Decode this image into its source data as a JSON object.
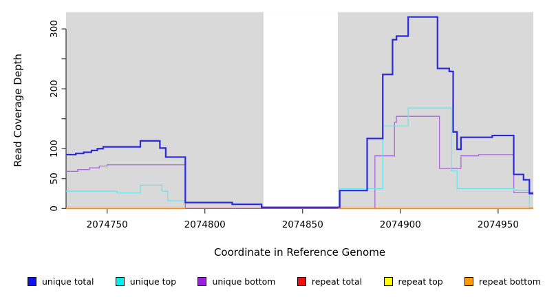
{
  "chart_data": {
    "type": "line",
    "subtype": "step-coverage",
    "title": "",
    "xlabel": "Coordinate in Reference Genome",
    "ylabel": "Read Coverage Depth",
    "xlim": [
      2074729,
      2074968
    ],
    "ylim": [
      0,
      328
    ],
    "grid": false,
    "panel_color": "#d9d9d9",
    "gap_band": {
      "x0": 2074830,
      "x1": 2074868,
      "color": "#ffffff"
    },
    "x_ticks": [
      {
        "v": 2074750,
        "label": "2074750"
      },
      {
        "v": 2074800,
        "label": "2074800"
      },
      {
        "v": 2074850,
        "label": "2074850"
      },
      {
        "v": 2074900,
        "label": "2074900"
      },
      {
        "v": 2074950,
        "label": "2074950"
      }
    ],
    "y_ticks": [
      {
        "v": 0,
        "label": "0"
      },
      {
        "v": 50,
        "label": "50"
      },
      {
        "v": 100,
        "label": "100"
      },
      {
        "v": 150,
        "label": ""
      },
      {
        "v": 200,
        "label": "200"
      },
      {
        "v": 250,
        "label": ""
      },
      {
        "v": 300,
        "label": "300"
      }
    ],
    "series": [
      {
        "name": "unique total",
        "color": "#2828dd",
        "width": 2.2,
        "points": [
          [
            2074729,
            90
          ],
          [
            2074734,
            92
          ],
          [
            2074738,
            94
          ],
          [
            2074742,
            97
          ],
          [
            2074745,
            100
          ],
          [
            2074748,
            103
          ],
          [
            2074767,
            113
          ],
          [
            2074777,
            101
          ],
          [
            2074780,
            86
          ],
          [
            2074790,
            10
          ],
          [
            2074814,
            7
          ],
          [
            2074829,
            2
          ],
          [
            2074869,
            30
          ],
          [
            2074883,
            117
          ],
          [
            2074891,
            224
          ],
          [
            2074896,
            282
          ],
          [
            2074898,
            288
          ],
          [
            2074904,
            320
          ],
          [
            2074919,
            234
          ],
          [
            2074925,
            229
          ],
          [
            2074927,
            128
          ],
          [
            2074929,
            99
          ],
          [
            2074931,
            119
          ],
          [
            2074947,
            122
          ],
          [
            2074958,
            57
          ],
          [
            2074963,
            48
          ],
          [
            2074966,
            25
          ],
          [
            2074968,
            25
          ]
        ]
      },
      {
        "name": "unique top",
        "color": "#6ae6ea",
        "width": 1.3,
        "points": [
          [
            2074729,
            29
          ],
          [
            2074755,
            26
          ],
          [
            2074767,
            39
          ],
          [
            2074778,
            29
          ],
          [
            2074781,
            13
          ],
          [
            2074790,
            10
          ],
          [
            2074814,
            7
          ],
          [
            2074829,
            2
          ],
          [
            2074869,
            33
          ],
          [
            2074891,
            138
          ],
          [
            2074904,
            168
          ],
          [
            2074926,
            63
          ],
          [
            2074929,
            33
          ],
          [
            2074958,
            30
          ],
          [
            2074966,
            2
          ],
          [
            2074968,
            2
          ]
        ]
      },
      {
        "name": "unique bottom",
        "color": "#aa66dd",
        "width": 1.3,
        "points": [
          [
            2074729,
            62
          ],
          [
            2074735,
            65
          ],
          [
            2074741,
            68
          ],
          [
            2074746,
            71
          ],
          [
            2074750,
            73
          ],
          [
            2074790,
            0
          ],
          [
            2074887,
            88
          ],
          [
            2074897,
            144
          ],
          [
            2074898,
            154
          ],
          [
            2074920,
            67
          ],
          [
            2074931,
            88
          ],
          [
            2074940,
            90
          ],
          [
            2074958,
            27
          ],
          [
            2074968,
            27
          ]
        ]
      },
      {
        "name": "repeat total",
        "color": "#dd4466",
        "width": 1.3,
        "segments": [
          {
            "x": [
              2074790,
              2074872
            ],
            "v": 0
          }
        ]
      },
      {
        "name": "repeat top",
        "color": "#ffff33",
        "width": 1.3,
        "segments": [
          {
            "x": [
              2074729,
              2074790
            ],
            "v": 0
          },
          {
            "x": [
              2074868,
              2074968
            ],
            "v": 0
          }
        ]
      },
      {
        "name": "repeat bottom",
        "color": "#ff8c1e",
        "width": 2,
        "segments": [
          {
            "x": [
              2074729,
              2074790
            ],
            "v": 0
          },
          {
            "x": [
              2074868,
              2074968
            ],
            "v": 0
          }
        ]
      }
    ],
    "legend": [
      {
        "label": "unique total",
        "color": "#1111ee"
      },
      {
        "label": "unique top",
        "color": "#00eeee"
      },
      {
        "label": "unique bottom",
        "color": "#9922dd"
      },
      {
        "label": "repeat total",
        "color": "#ee1111"
      },
      {
        "label": "repeat top",
        "color": "#ffff00"
      },
      {
        "label": "repeat bottom",
        "color": "#ff9900"
      }
    ],
    "legend_position": "bottom"
  }
}
